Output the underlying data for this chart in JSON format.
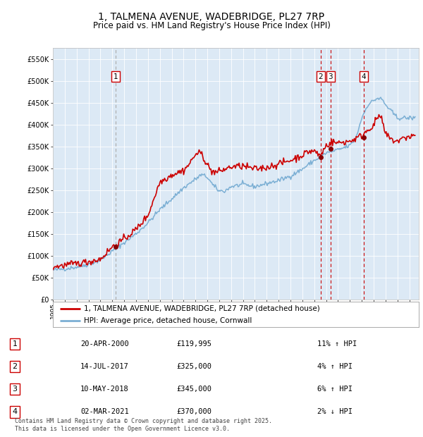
{
  "title": "1, TALMENA AVENUE, WADEBRIDGE, PL27 7RP",
  "subtitle": "Price paid vs. HM Land Registry's House Price Index (HPI)",
  "legend_line1": "1, TALMENA AVENUE, WADEBRIDGE, PL27 7RP (detached house)",
  "legend_line2": "HPI: Average price, detached house, Cornwall",
  "footer": "Contains HM Land Registry data © Crown copyright and database right 2025.\nThis data is licensed under the Open Government Licence v3.0.",
  "sale_markers": [
    {
      "label": "1",
      "date": "2000-04-20",
      "price": 119995,
      "x": 2000.3
    },
    {
      "label": "2",
      "date": "2017-07-14",
      "price": 325000,
      "x": 2017.53
    },
    {
      "label": "3",
      "date": "2018-05-10",
      "price": 345000,
      "x": 2018.36
    },
    {
      "label": "4",
      "date": "2021-03-02",
      "price": 370000,
      "x": 2021.17
    }
  ],
  "table_rows": [
    {
      "label": "1",
      "date": "20-APR-2000",
      "price": "£119,995",
      "pct": "11%",
      "dir": "↑",
      "text": "HPI"
    },
    {
      "label": "2",
      "date": "14-JUL-2017",
      "price": "£325,000",
      "pct": "4%",
      "dir": "↑",
      "text": "HPI"
    },
    {
      "label": "3",
      "date": "10-MAY-2018",
      "price": "£345,000",
      "pct": "6%",
      "dir": "↑",
      "text": "HPI"
    },
    {
      "label": "4",
      "date": "02-MAR-2021",
      "price": "£370,000",
      "pct": "2%",
      "dir": "↓",
      "text": "HPI"
    }
  ],
  "hpi_color": "#7bafd4",
  "price_color": "#cc0000",
  "marker_color": "#880000",
  "vline_color_gray": "#aaaaaa",
  "vline_color_red": "#cc0000",
  "plot_bg": "#dce9f5",
  "ylim": [
    0,
    575000
  ],
  "yticks": [
    0,
    50000,
    100000,
    150000,
    200000,
    250000,
    300000,
    350000,
    400000,
    450000,
    500000,
    550000
  ],
  "xlim_start": 1995.0,
  "xlim_end": 2025.8,
  "hpi_anchors_x": [
    1995,
    1996,
    1997,
    1998,
    1999,
    2000,
    2001,
    2002,
    2003,
    2004,
    2005,
    2006,
    2007,
    2007.5,
    2008,
    2008.5,
    2009,
    2009.5,
    2010,
    2011,
    2012,
    2013,
    2014,
    2015,
    2016,
    2017,
    2017.5,
    2018,
    2019,
    2020,
    2020.5,
    2021,
    2021.5,
    2022,
    2022.3,
    2022.7,
    2023,
    2023.5,
    2024,
    2024.5,
    2025,
    2025.5
  ],
  "hpi_anchors_y": [
    67000,
    70000,
    74000,
    80000,
    90000,
    110000,
    130000,
    150000,
    175000,
    205000,
    230000,
    255000,
    275000,
    285000,
    280000,
    260000,
    248000,
    248000,
    258000,
    263000,
    258000,
    265000,
    272000,
    282000,
    298000,
    318000,
    325000,
    335000,
    342000,
    352000,
    368000,
    415000,
    445000,
    455000,
    460000,
    458000,
    445000,
    430000,
    415000,
    415000,
    415000,
    415000
  ],
  "price_anchors_x": [
    1995,
    1996,
    1997,
    1998,
    1999,
    2000,
    2001,
    2002,
    2003,
    2003.5,
    2004,
    2005,
    2006,
    2006.5,
    2007,
    2007.5,
    2008,
    2008.3,
    2008.7,
    2009,
    2009.5,
    2010,
    2011,
    2012,
    2013,
    2014,
    2015,
    2016,
    2016.5,
    2017,
    2017.5,
    2018,
    2018.5,
    2019,
    2020,
    2020.5,
    2021,
    2021.5,
    2022,
    2022.3,
    2022.5,
    2022.8,
    2023,
    2023.5,
    2024,
    2024.5,
    2025,
    2025.5
  ],
  "price_anchors_y": [
    74000,
    78000,
    82000,
    86000,
    92000,
    120000,
    138000,
    160000,
    192000,
    230000,
    268000,
    285000,
    295000,
    310000,
    332000,
    335000,
    308000,
    295000,
    290000,
    293000,
    298000,
    303000,
    305000,
    298000,
    302000,
    310000,
    318000,
    330000,
    338000,
    340000,
    328000,
    352000,
    360000,
    358000,
    362000,
    368000,
    375000,
    388000,
    398000,
    415000,
    422000,
    400000,
    378000,
    365000,
    362000,
    368000,
    373000,
    375000
  ]
}
